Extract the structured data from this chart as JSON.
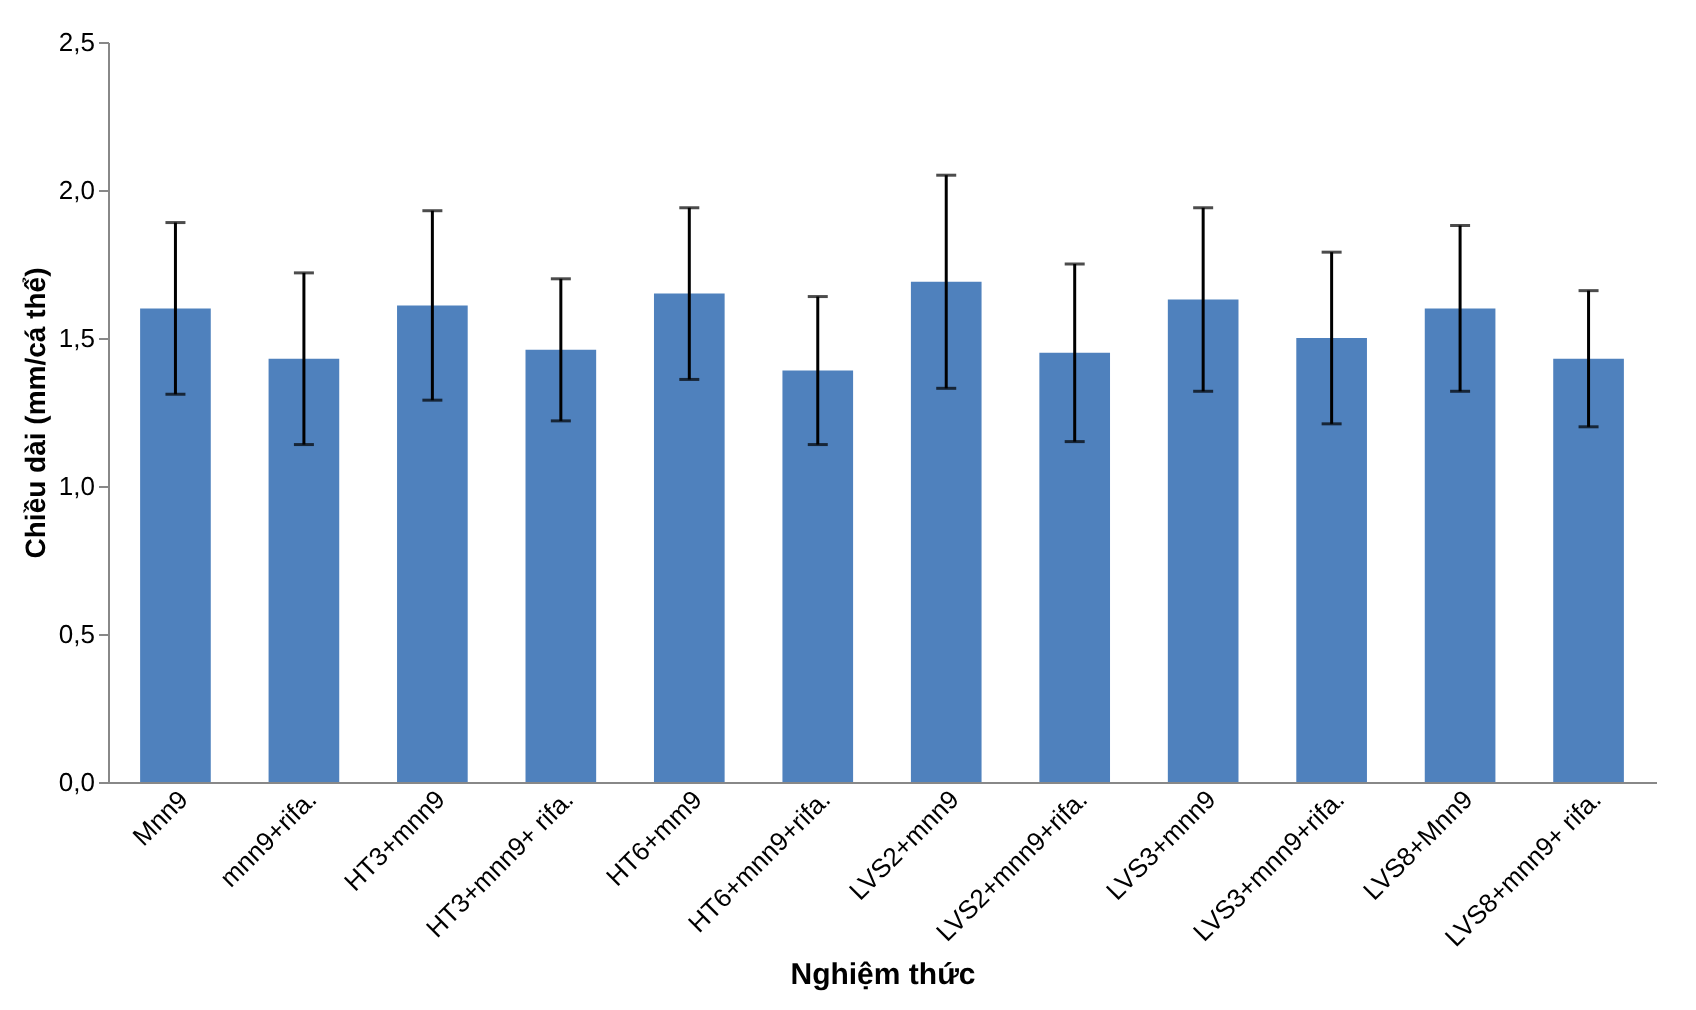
{
  "chart_data": {
    "type": "bar",
    "xlabel": "Nghiệm thức",
    "ylabel": "Chiều dài (mm/cá thể)",
    "categories": [
      "Mnn9",
      "mnn9+rifa.",
      "HT3+mnn9",
      "HT3+mnn9+ rifa.",
      "HT6+mm9",
      "HT6+mnn9+rifa.",
      "LVS2+mnn9",
      "LVS2+mnn9+rifa.",
      "LVS3+mnn9",
      "LVS3+mnn9+rifa.",
      "LVS8+Mnn9",
      "LVS8+mnn9+ rifa."
    ],
    "values": [
      1.6,
      1.43,
      1.61,
      1.46,
      1.65,
      1.39,
      1.69,
      1.45,
      1.63,
      1.5,
      1.6,
      1.43
    ],
    "errors": [
      0.29,
      0.29,
      0.32,
      0.24,
      0.29,
      0.25,
      0.36,
      0.3,
      0.31,
      0.29,
      0.28,
      0.23
    ],
    "color": "#4f81bd",
    "ylim": [
      0,
      2.5
    ],
    "yticks": [
      {
        "value": 0,
        "label": "0,0"
      },
      {
        "value": 0.5,
        "label": "0,5"
      },
      {
        "value": 1,
        "label": "1,0"
      },
      {
        "value": 1.5,
        "label": "1,5"
      },
      {
        "value": 2,
        "label": "2,0"
      },
      {
        "value": 2.5,
        "label": "2,5"
      }
    ],
    "grid": false
  }
}
